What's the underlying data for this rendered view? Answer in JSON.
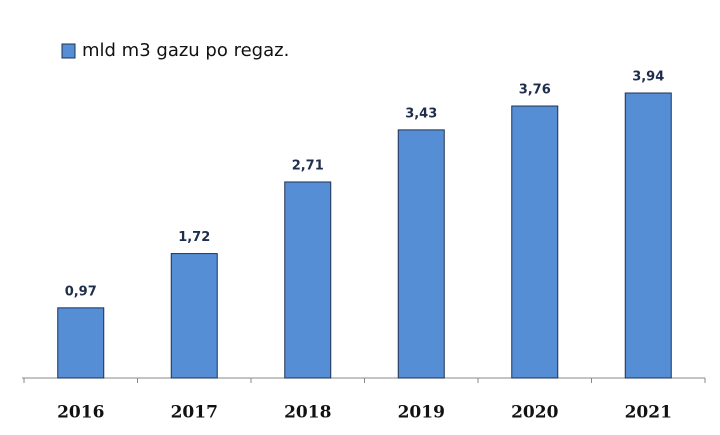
{
  "chart_data": {
    "type": "bar",
    "categories": [
      "2016",
      "2017",
      "2018",
      "2019",
      "2020",
      "2021"
    ],
    "series": [
      {
        "name": "mld m3 gazu po regaz.",
        "color": "#558ed5",
        "values": [
          0.97,
          1.72,
          2.71,
          3.43,
          3.76,
          3.94
        ],
        "value_labels": [
          "0,97",
          "1,72",
          "2,71",
          "3,43",
          "3,76",
          "3,94"
        ]
      }
    ],
    "legend": "top-left"
  }
}
